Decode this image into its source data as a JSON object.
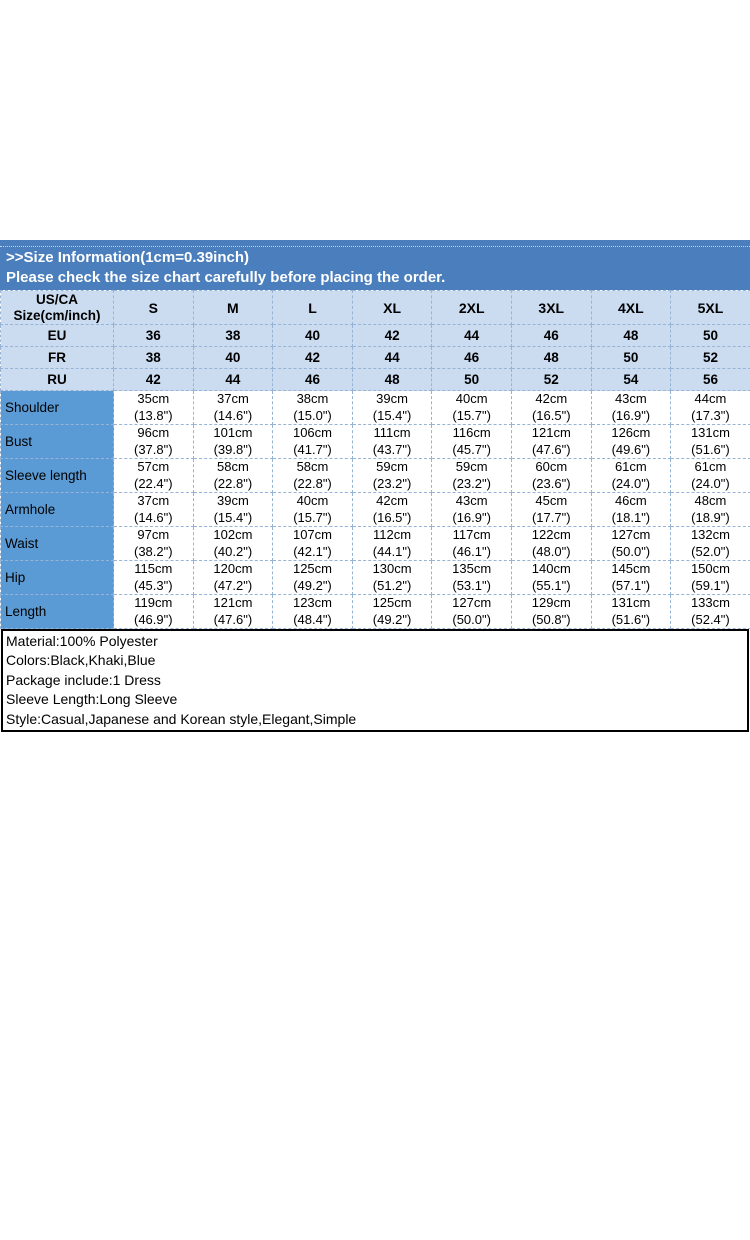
{
  "banner": {
    "title": ">>Size Information(1cm=0.39inch)",
    "subtitle": "Please check the size chart carefully before placing the order."
  },
  "table": {
    "corner": {
      "line1": "US/CA",
      "line2": "Size(cm/inch)"
    },
    "sizes": [
      "S",
      "M",
      "L",
      "XL",
      "2XL",
      "3XL",
      "4XL",
      "5XL"
    ],
    "region_rows": [
      {
        "label": "EU",
        "values": [
          "36",
          "38",
          "40",
          "42",
          "44",
          "46",
          "48",
          "50"
        ]
      },
      {
        "label": "FR",
        "values": [
          "38",
          "40",
          "42",
          "44",
          "46",
          "48",
          "50",
          "52"
        ]
      },
      {
        "label": "RU",
        "values": [
          "42",
          "44",
          "46",
          "48",
          "50",
          "52",
          "54",
          "56"
        ]
      }
    ],
    "measurement_rows": [
      {
        "label": "Shoulder",
        "cm": [
          "35cm",
          "37cm",
          "38cm",
          "39cm",
          "40cm",
          "42cm",
          "43cm",
          "44cm"
        ],
        "inch": [
          "(13.8\")",
          "(14.6\")",
          "(15.0\")",
          "(15.4\")",
          "(15.7\")",
          "(16.5\")",
          "(16.9\")",
          "(17.3\")"
        ]
      },
      {
        "label": "Bust",
        "cm": [
          "96cm",
          "101cm",
          "106cm",
          "111cm",
          "116cm",
          "121cm",
          "126cm",
          "131cm"
        ],
        "inch": [
          "(37.8\")",
          "(39.8\")",
          "(41.7\")",
          "(43.7\")",
          "(45.7\")",
          "(47.6\")",
          "(49.6\")",
          "(51.6\")"
        ]
      },
      {
        "label": "Sleeve length",
        "cm": [
          "57cm",
          "58cm",
          "58cm",
          "59cm",
          "59cm",
          "60cm",
          "61cm",
          "61cm"
        ],
        "inch": [
          "(22.4\")",
          "(22.8\")",
          "(22.8\")",
          "(23.2\")",
          "(23.2\")",
          "(23.6\")",
          "(24.0\")",
          "(24.0\")"
        ]
      },
      {
        "label": "Armhole",
        "cm": [
          "37cm",
          "39cm",
          "40cm",
          "42cm",
          "43cm",
          "45cm",
          "46cm",
          "48cm"
        ],
        "inch": [
          "(14.6\")",
          "(15.4\")",
          "(15.7\")",
          "(16.5\")",
          "(16.9\")",
          "(17.7\")",
          "(18.1\")",
          "(18.9\")"
        ]
      },
      {
        "label": "Waist",
        "cm": [
          "97cm",
          "102cm",
          "107cm",
          "112cm",
          "117cm",
          "122cm",
          "127cm",
          "132cm"
        ],
        "inch": [
          "(38.2\")",
          "(40.2\")",
          "(42.1\")",
          "(44.1\")",
          "(46.1\")",
          "(48.0\")",
          "(50.0\")",
          "(52.0\")"
        ]
      },
      {
        "label": "Hip",
        "cm": [
          "115cm",
          "120cm",
          "125cm",
          "130cm",
          "135cm",
          "140cm",
          "145cm",
          "150cm"
        ],
        "inch": [
          "(45.3\")",
          "(47.2\")",
          "(49.2\")",
          "(51.2\")",
          "(53.1\")",
          "(55.1\")",
          "(57.1\")",
          "(59.1\")"
        ]
      },
      {
        "label": "Length",
        "cm": [
          "119cm",
          "121cm",
          "123cm",
          "125cm",
          "127cm",
          "129cm",
          "131cm",
          "133cm"
        ],
        "inch": [
          "(46.9\")",
          "(47.6\")",
          "(48.4\")",
          "(49.2\")",
          "(50.0\")",
          "(50.8\")",
          "(51.6\")",
          "(52.4\")"
        ]
      }
    ]
  },
  "details": {
    "lines": [
      "Material:100% Polyester",
      "Colors:Black,Khaki,Blue",
      "Package include:1 Dress",
      "Sleeve Length:Long Sleeve",
      "Style:Casual,Japanese and Korean style,Elegant,Simple"
    ]
  },
  "colors": {
    "banner_blue": "#4a7ebd",
    "row_label_blue": "#5b9bd5",
    "light_row_blue": "#cbdcf0",
    "grid_line_blue": "#97b4d6",
    "banner_text": "#ffffff",
    "details_border": "#000000"
  }
}
